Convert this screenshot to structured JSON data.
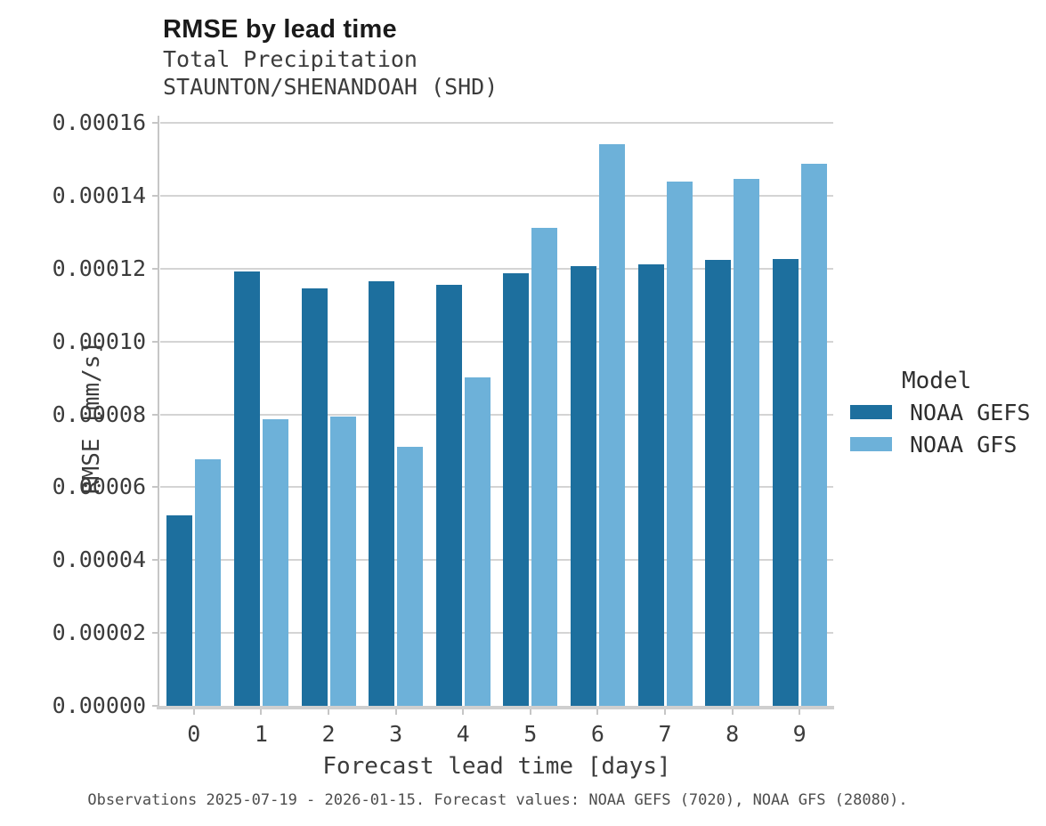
{
  "title": "RMSE by lead time",
  "subtitle_line1": "Total Precipitation",
  "subtitle_line2": "STAUNTON/SHENANDOAH (SHD)",
  "caption": "Observations 2025-07-19 - 2026-01-15. Forecast values: NOAA GEFS (7020), NOAA GFS (28080).",
  "colors": {
    "gefs": "#1d6f9e",
    "gfs": "#6db1d9",
    "gridline": "#d4d4d4",
    "spine": "#c6c6c6"
  },
  "legend": {
    "title": "Model",
    "entries": [
      {
        "label": "NOAA GEFS",
        "color": "#1d6f9e"
      },
      {
        "label": "NOAA GFS",
        "color": "#6db1d9"
      }
    ]
  },
  "chart_data": {
    "type": "bar",
    "title": "RMSE by lead time",
    "subtitle": "Total Precipitation — STAUNTON/SHENANDOAH (SHD)",
    "xlabel": "Forecast lead time [days]",
    "ylabel": "RMSE [mm/s]",
    "categories": [
      "0",
      "1",
      "2",
      "3",
      "4",
      "5",
      "6",
      "7",
      "8",
      "9"
    ],
    "series": [
      {
        "name": "NOAA GEFS",
        "color": "#1d6f9e",
        "values": [
          5.22e-05,
          0.0001192,
          0.0001146,
          0.0001166,
          0.0001155,
          0.0001188,
          0.0001206,
          0.0001211,
          0.0001223,
          0.0001226
        ]
      },
      {
        "name": "NOAA GFS",
        "color": "#6db1d9",
        "values": [
          6.77e-05,
          7.86e-05,
          7.95e-05,
          7.11e-05,
          9.01e-05,
          0.0001312,
          0.0001541,
          0.0001438,
          0.0001445,
          0.0001487
        ]
      }
    ],
    "ylim": [
      0,
      0.00016
    ],
    "yticks": [
      0,
      2e-05,
      4e-05,
      6e-05,
      8e-05,
      0.0001,
      0.00012,
      0.00014,
      0.00016
    ],
    "ytick_labels": [
      "0.00000",
      "0.00002",
      "0.00004",
      "0.00006",
      "0.00008",
      "0.00010",
      "0.00012",
      "0.00014",
      "0.00016"
    ],
    "grid": true,
    "legend_title": "Model",
    "legend_position": "right"
  }
}
